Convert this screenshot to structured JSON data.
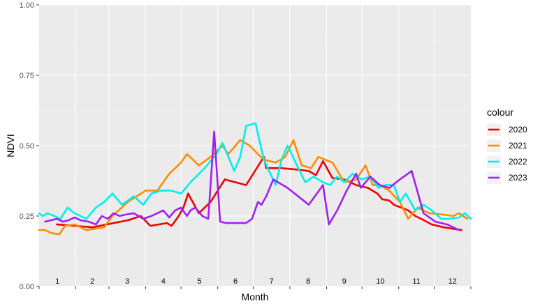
{
  "chart_data": {
    "type": "line",
    "title": "",
    "xlabel": "Month",
    "ylabel": "NDVI",
    "ylim": [
      0,
      1
    ],
    "y_ticks": [
      "0.00",
      "0.25",
      "0.50",
      "0.75",
      "1.00"
    ],
    "y_tick_values": [
      0,
      0.25,
      0.5,
      0.75,
      1.0
    ],
    "xlim": [
      0,
      365
    ],
    "month_labels": [
      "1",
      "2",
      "3",
      "4",
      "5",
      "6",
      "7",
      "8",
      "9",
      "10",
      "11",
      "12"
    ],
    "month_boundaries": [
      0,
      31,
      59,
      90,
      120,
      151,
      181,
      212,
      243,
      273,
      304,
      334,
      365
    ],
    "grid": true,
    "legend": {
      "title": "colour",
      "position": "right"
    },
    "series": [
      {
        "name": "2020",
        "color": "#ee0000",
        "x": [
          15,
          45,
          75,
          86,
          94,
          108,
          112,
          118,
          122,
          126,
          135,
          145,
          151,
          157,
          175,
          190,
          192,
          205,
          218,
          228,
          234,
          240,
          248,
          258,
          268,
          278,
          286,
          290,
          296,
          300,
          312,
          318,
          323,
          332,
          342,
          357
        ],
        "y": [
          0.22,
          0.21,
          0.235,
          0.25,
          0.215,
          0.225,
          0.215,
          0.25,
          0.28,
          0.33,
          0.26,
          0.3,
          0.34,
          0.38,
          0.36,
          0.46,
          0.42,
          0.42,
          0.415,
          0.41,
          0.395,
          0.445,
          0.385,
          0.38,
          0.36,
          0.35,
          0.33,
          0.31,
          0.305,
          0.29,
          0.27,
          0.25,
          0.24,
          0.22,
          0.21,
          0.2
        ]
      },
      {
        "name": "2021",
        "color": "#ff8c00",
        "x": [
          0,
          5,
          10,
          17,
          22,
          30,
          40,
          55,
          62,
          75,
          90,
          100,
          110,
          120,
          125,
          135,
          145,
          155,
          160,
          170,
          178,
          185,
          190,
          200,
          208,
          215,
          222,
          230,
          236,
          248,
          258,
          268,
          276,
          282,
          288,
          296,
          305,
          312,
          320,
          330,
          342,
          350,
          355,
          362
        ],
        "y": [
          0.2,
          0.2,
          0.19,
          0.185,
          0.215,
          0.22,
          0.2,
          0.21,
          0.25,
          0.3,
          0.34,
          0.34,
          0.4,
          0.44,
          0.47,
          0.43,
          0.46,
          0.5,
          0.47,
          0.52,
          0.5,
          0.47,
          0.45,
          0.44,
          0.46,
          0.52,
          0.43,
          0.42,
          0.46,
          0.44,
          0.37,
          0.38,
          0.43,
          0.36,
          0.36,
          0.34,
          0.3,
          0.24,
          0.28,
          0.26,
          0.255,
          0.25,
          0.26,
          0.24
        ]
      },
      {
        "name": "2022",
        "color": "#00eeee",
        "x": [
          0,
          3,
          7,
          13,
          18,
          24,
          30,
          40,
          48,
          55,
          62,
          70,
          80,
          88,
          95,
          103,
          112,
          120,
          128,
          140,
          150,
          155,
          165,
          170,
          175,
          183,
          190,
          200,
          205,
          210,
          218,
          225,
          232,
          240,
          246,
          252,
          258,
          265,
          273,
          280,
          287,
          293,
          300,
          305,
          310,
          318,
          325,
          332,
          340,
          347,
          355,
          360,
          365
        ],
        "y": [
          0.26,
          0.25,
          0.26,
          0.25,
          0.24,
          0.28,
          0.26,
          0.24,
          0.28,
          0.3,
          0.33,
          0.29,
          0.32,
          0.29,
          0.33,
          0.34,
          0.34,
          0.33,
          0.37,
          0.42,
          0.47,
          0.51,
          0.41,
          0.46,
          0.57,
          0.58,
          0.45,
          0.36,
          0.45,
          0.5,
          0.43,
          0.37,
          0.39,
          0.37,
          0.36,
          0.39,
          0.37,
          0.4,
          0.38,
          0.39,
          0.35,
          0.36,
          0.36,
          0.3,
          0.33,
          0.27,
          0.29,
          0.27,
          0.24,
          0.24,
          0.245,
          0.26,
          0.24
        ]
      },
      {
        "name": "2023",
        "color": "#a020f0",
        "x": [
          5,
          15,
          20,
          25,
          30,
          35,
          42,
          48,
          53,
          58,
          63,
          68,
          73,
          80,
          88,
          95,
          105,
          110,
          115,
          120,
          125,
          128,
          132,
          138,
          143,
          148,
          153,
          158,
          165,
          175,
          180,
          185,
          188,
          192,
          198,
          210,
          228,
          240,
          245,
          252,
          260,
          268,
          272,
          280,
          288,
          296,
          305,
          315,
          325,
          335,
          345,
          355
        ],
        "y": [
          0.23,
          0.24,
          0.23,
          0.235,
          0.245,
          0.235,
          0.23,
          0.22,
          0.25,
          0.24,
          0.26,
          0.25,
          0.255,
          0.26,
          0.24,
          0.25,
          0.27,
          0.245,
          0.27,
          0.28,
          0.25,
          0.27,
          0.28,
          0.25,
          0.24,
          0.55,
          0.23,
          0.225,
          0.225,
          0.225,
          0.24,
          0.3,
          0.29,
          0.32,
          0.38,
          0.35,
          0.29,
          0.36,
          0.22,
          0.27,
          0.34,
          0.4,
          0.35,
          0.39,
          0.36,
          0.35,
          0.38,
          0.41,
          0.26,
          0.23,
          0.22,
          0.2
        ]
      }
    ]
  }
}
